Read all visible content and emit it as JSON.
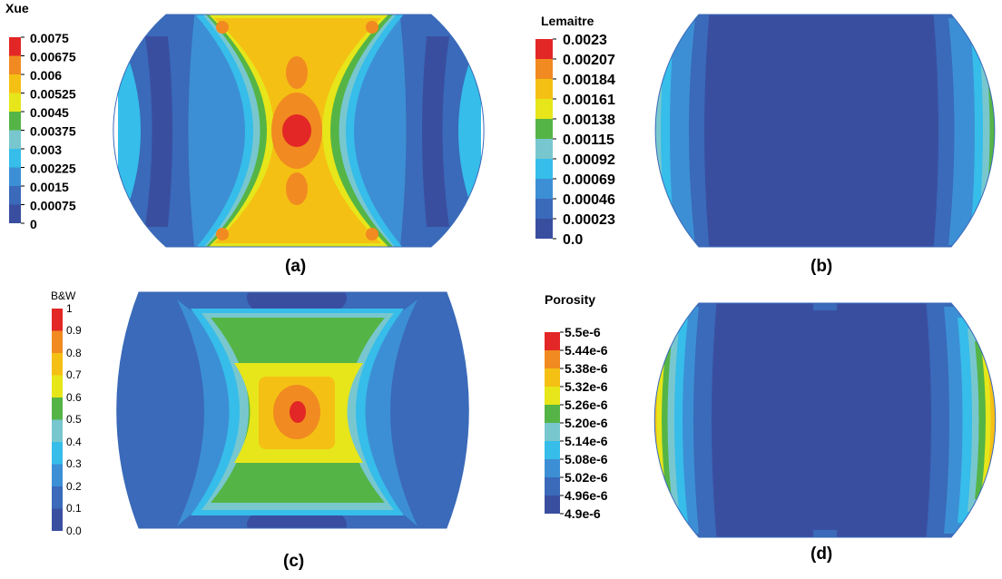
{
  "colors": {
    "c0": "#3a4ea0",
    "c1": "#3a6ab9",
    "c2": "#3d8fd5",
    "c3": "#36bdea",
    "c4": "#78c7cf",
    "c5": "#55b446",
    "c6": "#e6e61a",
    "c7": "#f5c014",
    "c8": "#f18a21",
    "c9": "#e32626"
  },
  "chart_data": [
    {
      "type": "heatmap",
      "panel_label": "(a)",
      "legend_title": "Xue",
      "legend_ticks": [
        "0.0075",
        "0.00675",
        "0.006",
        "0.00525",
        "0.0045",
        "0.00375",
        "0.003",
        "0.00225",
        "0.0015",
        "0.00075",
        "0"
      ],
      "field_range": [
        0,
        0.0075
      ],
      "pattern": "X-shaped band with maximum (red) at center, minimum (dark blue) near left and right flats"
    },
    {
      "type": "heatmap",
      "panel_label": "(b)",
      "legend_title": "Lemaitre",
      "legend_ticks": [
        "0.0023",
        "0.00207",
        "0.00184",
        "0.00161",
        "0.00138",
        "0.00115",
        "0.00092",
        "0.00069",
        "0.00046",
        "0.00023",
        "0.0"
      ],
      "field_range": [
        0,
        0.0023
      ],
      "pattern": "Uniform minimum (dark blue) in center, maximum (red) at left and right curved edges"
    },
    {
      "type": "heatmap",
      "panel_label": "(c)",
      "legend_title": "B&W",
      "legend_ticks": [
        "1",
        "0.9",
        "0.8",
        "0.7",
        "0.6",
        "0.5",
        "0.4",
        "0.3",
        "0.2",
        "0.1",
        "0.0"
      ],
      "field_range": [
        0,
        1
      ],
      "pattern": "Star/X-shaped pattern with maximum (red/orange) at center"
    },
    {
      "type": "heatmap",
      "panel_label": "(d)",
      "legend_title": "Porosity",
      "legend_ticks": [
        "5.5e-6",
        "5.44e-6",
        "5.38e-6",
        "5.32e-6",
        "5.26e-6",
        "5.20e-6",
        "5.14e-6",
        "5.08e-6",
        "5.02e-6",
        "4.96e-6",
        "4.9e-6"
      ],
      "field_range": [
        4.9e-06,
        5.5e-06
      ],
      "pattern": "Uniform minimum (dark blue) in center, maximum (red/orange) at left and right curved edges"
    }
  ]
}
